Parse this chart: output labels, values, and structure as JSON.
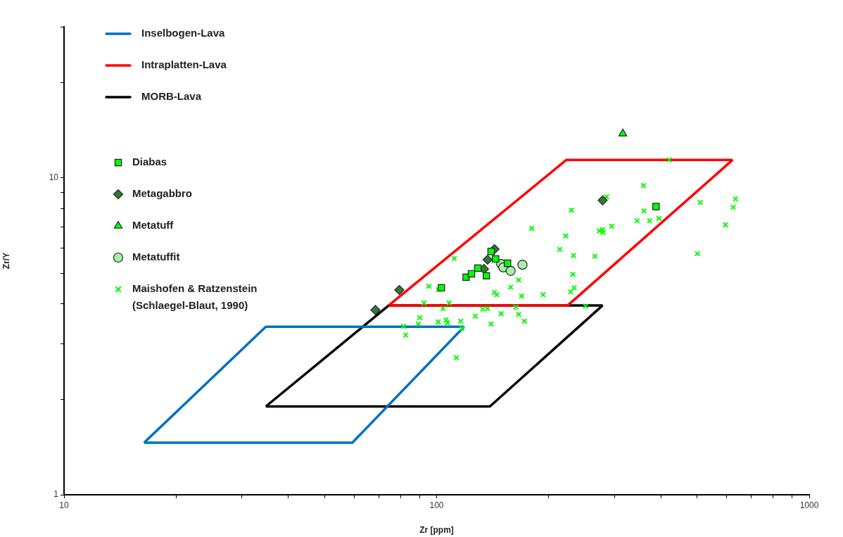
{
  "chart_data": {
    "type": "scatter",
    "xlabel": "Zr [ppm]",
    "ylabel": "Zr/Y",
    "log": "xy",
    "grid": false,
    "legend": "top left",
    "xlim": [
      10,
      1000
    ],
    "ylim": [
      1,
      30
    ],
    "xticks": [
      10,
      {
        "value": 20,
        "label": null
      },
      {
        "value": 30,
        "label": null
      },
      {
        "value": 40,
        "label": null
      },
      {
        "value": 50,
        "label": null
      },
      {
        "value": 60,
        "label": null
      },
      {
        "value": 70,
        "label": null
      },
      {
        "value": 80,
        "label": null
      },
      {
        "value": 90,
        "label": null
      },
      100,
      {
        "value": 200,
        "label": null
      },
      {
        "value": 300,
        "label": null
      },
      {
        "value": 400,
        "label": null
      },
      {
        "value": 500,
        "label": null
      },
      {
        "value": 600,
        "label": null
      },
      {
        "value": 700,
        "label": null
      },
      {
        "value": 800,
        "label": null
      },
      {
        "value": 900,
        "label": null
      },
      1000
    ],
    "yticks": [
      1,
      {
        "value": 2,
        "label": null
      },
      {
        "value": 3,
        "label": null
      },
      {
        "value": 4,
        "label": null
      },
      {
        "value": 5,
        "label": null
      },
      {
        "value": 6,
        "label": null
      },
      {
        "value": 7,
        "label": null
      },
      {
        "value": 8,
        "label": null
      },
      {
        "value": 9,
        "label": null
      },
      10,
      {
        "value": 20,
        "label": null
      },
      {
        "value": 30,
        "label": null
      }
    ],
    "series": [
      {
        "name": "Inselbogen-Lava",
        "type": "line",
        "color": "#0070c0",
        "marker": "none",
        "x": [
          16.4,
          59.4,
          118.5
        ],
        "values": [
          1.46,
          1.46,
          3.39
        ]
      },
      {
        "type": "line",
        "color": "#0070c0",
        "marker": "none",
        "x": [
          16.4,
          34.8,
          118.5
        ],
        "values": [
          1.46,
          3.39,
          3.39
        ]
      },
      {
        "name": "Intraplatten-Lava",
        "type": "line",
        "color": "#ff0000",
        "marker": "none",
        "x": [
          74.4,
          223,
          623
        ],
        "values": [
          3.96,
          11.4,
          11.4
        ]
      },
      {
        "type": "line",
        "color": "#ff0000",
        "marker": "none",
        "x": [
          74.4,
          225,
          623
        ],
        "values": [
          3.96,
          3.96,
          11.4
        ]
      },
      {
        "name": "MORB-Lava",
        "type": "line",
        "color": "#000000",
        "marker": "none",
        "x": [
          34.8,
          139,
          279
        ],
        "values": [
          1.9,
          1.9,
          3.96
        ]
      },
      {
        "type": "line",
        "color": "#000000",
        "marker": "none",
        "x": [
          34.8,
          74.4,
          279
        ],
        "values": [
          1.9,
          3.96,
          3.96
        ]
      },
      {
        "name": "Diabas",
        "color": "#00ff00",
        "marker": "square",
        "x": [
          103,
          120,
          124,
          129,
          136,
          140,
          144,
          155,
          388
        ],
        "values": [
          4.5,
          4.86,
          4.98,
          5.19,
          4.91,
          5.86,
          5.55,
          5.38,
          8.12
        ]
      },
      {
        "name": "Metagabbro",
        "color": "#2e7d32",
        "marker": "diamond",
        "x": [
          68.5,
          79.4,
          143,
          137,
          134,
          279
        ],
        "values": [
          3.83,
          4.43,
          5.96,
          5.52,
          5.16,
          8.5
        ]
      },
      {
        "name": "Metatuff",
        "color": "#00ff00",
        "marker": "triangle",
        "x": [
          316
        ],
        "values": [
          13.8
        ]
      },
      {
        "name": "Metatuffit",
        "color": "#a8f0a8",
        "marker": "circle",
        "x": [
          149,
          151,
          158,
          170
        ],
        "values": [
          5.35,
          5.22,
          5.09,
          5.32
        ]
      },
      {
        "name": "Maishofen & Ratzenstein\n(Schlaegel-Blaut, 1990)",
        "color": "#00ff00",
        "marker": "cross",
        "x": [
          111.5,
          95.3,
          92.5,
          104,
          108,
          90.1,
          89.3,
          81.5,
          82.6,
          101,
          106,
          107,
          116,
          117,
          127,
          133,
          137,
          140,
          143,
          145,
          149,
          158,
          166,
          169,
          163,
          166,
          172,
          180,
          193,
          214,
          222,
          230,
          233,
          232,
          234,
          229,
          251,
          113,
          101,
          421,
          359,
          286,
          360,
          345,
          373,
          395,
          295,
          273,
          279,
          280,
          266,
          510,
          634,
          625,
          596,
          501
        ],
        "values": [
          5.57,
          4.55,
          4.03,
          3.87,
          4.03,
          3.62,
          3.46,
          3.4,
          3.19,
          3.51,
          3.56,
          3.49,
          3.53,
          3.35,
          3.66,
          3.85,
          3.87,
          3.46,
          4.35,
          4.28,
          3.73,
          4.52,
          4.76,
          4.24,
          3.91,
          3.71,
          3.53,
          6.93,
          4.28,
          5.95,
          6.56,
          7.91,
          5.69,
          4.96,
          4.5,
          4.37,
          3.94,
          2.71,
          4.44,
          11.4,
          9.46,
          8.72,
          7.87,
          7.33,
          7.33,
          7.45,
          7.04,
          6.8,
          6.87,
          6.73,
          5.66,
          8.37,
          8.59,
          8.08,
          7.11,
          5.77
        ]
      }
    ]
  }
}
